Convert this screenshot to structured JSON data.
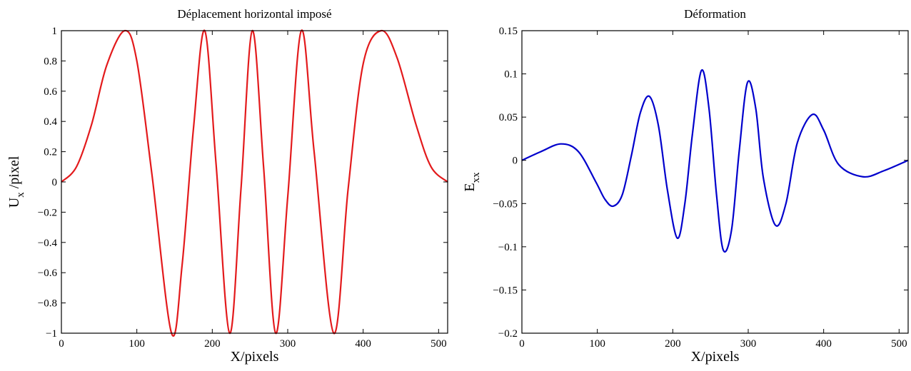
{
  "chart_data": [
    {
      "type": "line",
      "title": "Déplacement horizontal imposé",
      "xlabel": "X/pixels",
      "ylabel": {
        "main": "U",
        "sub": "x",
        "suffix": " /pixel"
      },
      "xlim": [
        0,
        512
      ],
      "ylim": [
        -1,
        1
      ],
      "xticks": [
        0,
        100,
        200,
        300,
        400,
        500
      ],
      "yticks": [
        -1,
        -0.8,
        -0.6,
        -0.4,
        -0.2,
        0,
        0.2,
        0.4,
        0.6,
        0.8,
        1
      ],
      "grid": false,
      "series": [
        {
          "color": "#e31a1c",
          "x": [
            0,
            20,
            40,
            60,
            84,
            100,
            120,
            146,
            160,
            175,
            190,
            205,
            223,
            238,
            253,
            268,
            284,
            300,
            318,
            335,
            361,
            380,
            400,
            424,
            445,
            470,
            490,
            512
          ],
          "y": [
            0,
            0.1,
            0.38,
            0.77,
            1,
            0.8,
            0.05,
            -1,
            -0.55,
            0.35,
            1,
            0.12,
            -1,
            -0.05,
            1,
            0.1,
            -1,
            -0.1,
            1,
            0.2,
            -1,
            -0.05,
            0.78,
            1,
            0.82,
            0.38,
            0.1,
            0
          ]
        }
      ]
    },
    {
      "type": "line",
      "title": "Déformation",
      "xlabel": "X/pixels",
      "ylabel": {
        "main": "E",
        "sub": "xx",
        "suffix": ""
      },
      "xlim": [
        0,
        512
      ],
      "ylim": [
        -0.2,
        0.15
      ],
      "xticks": [
        0,
        100,
        200,
        300,
        400,
        500
      ],
      "yticks": [
        -0.2,
        -0.15,
        -0.1,
        -0.05,
        0,
        0.05,
        0.1,
        0.15
      ],
      "grid": false,
      "series": [
        {
          "color": "#0000cc",
          "x": [
            0,
            25,
            52,
            75,
            98,
            110,
            121,
            133,
            145,
            157,
            169,
            181,
            193,
            206,
            216,
            226,
            238,
            248,
            258,
            267,
            278,
            288,
            299,
            310,
            320,
            336,
            350,
            365,
            385,
            400,
            420,
            452,
            480,
            512
          ],
          "y": [
            0,
            0.01,
            0.019,
            0.01,
            -0.025,
            -0.045,
            -0.053,
            -0.04,
            0.005,
            0.055,
            0.074,
            0.04,
            -0.035,
            -0.09,
            -0.05,
            0.03,
            0.104,
            0.06,
            -0.04,
            -0.104,
            -0.08,
            0.01,
            0.09,
            0.06,
            -0.02,
            -0.075,
            -0.05,
            0.02,
            0.053,
            0.035,
            -0.005,
            -0.019,
            -0.012,
            0
          ]
        }
      ]
    }
  ]
}
